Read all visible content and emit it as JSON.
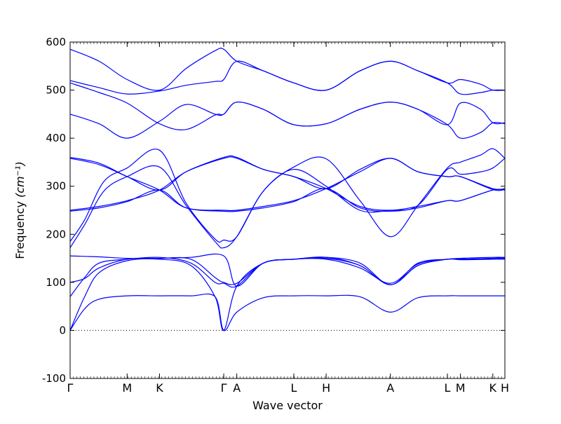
{
  "chart_data": {
    "type": "line",
    "title": "",
    "xlabel": "Wave vector",
    "ylabel": "Frequency",
    "ylabel_unit": "(cm⁻¹)",
    "ylim": [
      -100,
      600
    ],
    "yticks": [
      -100,
      0,
      100,
      200,
      300,
      400,
      500,
      600
    ],
    "grid": false,
    "legend": "none",
    "line_color": "#0000ff",
    "zero_line": {
      "y": 0,
      "style": "dotted",
      "color": "#000000"
    },
    "xlim": [
      0,
      9.0
    ],
    "xticks": [
      {
        "label": "Γ",
        "x": 0
      },
      {
        "label": "M",
        "x": 1.18
      },
      {
        "label": "K",
        "x": 1.85
      },
      {
        "label": "Γ",
        "x": 3.18
      },
      {
        "label": "A",
        "x": 3.45
      },
      {
        "label": "L",
        "x": 4.63
      },
      {
        "label": "H",
        "x": 5.3
      },
      {
        "label": "A",
        "x": 6.63
      },
      {
        "label": "L",
        "x": 7.81
      },
      {
        "label": "M",
        "x": 8.08
      },
      {
        "label": "K",
        "x": 8.75
      },
      {
        "label": "H",
        "x": 9.0
      }
    ],
    "series": [
      {
        "points": [
          [
            0,
            0
          ],
          [
            0.3,
            45
          ],
          [
            0.6,
            65
          ],
          [
            1.18,
            72
          ],
          [
            1.85,
            72
          ],
          [
            2.5,
            72
          ],
          [
            3.0,
            70
          ],
          [
            3.18,
            0
          ],
          [
            3.45,
            38
          ],
          [
            4.0,
            68
          ],
          [
            4.63,
            72
          ],
          [
            5.3,
            72
          ],
          [
            6.0,
            70
          ],
          [
            6.63,
            38
          ],
          [
            7.2,
            68
          ],
          [
            7.81,
            72
          ],
          [
            8.08,
            72
          ],
          [
            8.75,
            72
          ],
          [
            9.0,
            72
          ]
        ]
      },
      {
        "points": [
          [
            0,
            0
          ],
          [
            0.3,
            70
          ],
          [
            0.6,
            120
          ],
          [
            1.18,
            145
          ],
          [
            1.85,
            148
          ],
          [
            2.5,
            135
          ],
          [
            3.0,
            70
          ],
          [
            3.18,
            0
          ],
          [
            3.45,
            92
          ],
          [
            4.0,
            140
          ],
          [
            4.63,
            148
          ],
          [
            5.3,
            150
          ],
          [
            6.0,
            135
          ],
          [
            6.63,
            95
          ],
          [
            7.2,
            135
          ],
          [
            7.81,
            148
          ],
          [
            8.08,
            148
          ],
          [
            8.75,
            150
          ],
          [
            9.0,
            150
          ]
        ]
      },
      {
        "points": [
          [
            0,
            70
          ],
          [
            0.3,
            110
          ],
          [
            0.6,
            140
          ],
          [
            1.18,
            148
          ],
          [
            1.85,
            152
          ],
          [
            2.5,
            140
          ],
          [
            3.0,
            100
          ],
          [
            3.18,
            98
          ],
          [
            3.45,
            92
          ],
          [
            4.0,
            140
          ],
          [
            4.63,
            148
          ],
          [
            5.3,
            152
          ],
          [
            6.0,
            135
          ],
          [
            6.63,
            95
          ],
          [
            7.2,
            135
          ],
          [
            7.81,
            148
          ],
          [
            8.08,
            147
          ],
          [
            8.75,
            148
          ],
          [
            9.0,
            148
          ]
        ]
      },
      {
        "points": [
          [
            0,
            100
          ],
          [
            0.3,
            108
          ],
          [
            0.6,
            130
          ],
          [
            1.18,
            148
          ],
          [
            1.85,
            150
          ],
          [
            2.5,
            148
          ],
          [
            3.0,
            110
          ],
          [
            3.18,
            100
          ],
          [
            3.45,
            98
          ],
          [
            4.0,
            140
          ],
          [
            4.63,
            148
          ],
          [
            5.3,
            148
          ],
          [
            6.0,
            130
          ],
          [
            6.63,
            98
          ],
          [
            7.2,
            138
          ],
          [
            7.81,
            148
          ],
          [
            8.08,
            148
          ],
          [
            8.75,
            150
          ],
          [
            9.0,
            152
          ]
        ]
      },
      {
        "points": [
          [
            0,
            155
          ],
          [
            0.6,
            153
          ],
          [
            1.18,
            150
          ],
          [
            1.85,
            150
          ],
          [
            2.5,
            152
          ],
          [
            3.18,
            155
          ],
          [
            3.45,
            92
          ],
          [
            4.0,
            140
          ],
          [
            4.63,
            148
          ],
          [
            5.3,
            152
          ],
          [
            6.0,
            140
          ],
          [
            6.63,
            95
          ],
          [
            7.2,
            140
          ],
          [
            7.81,
            148
          ],
          [
            8.08,
            150
          ],
          [
            8.75,
            152
          ],
          [
            9.0,
            152
          ]
        ]
      },
      {
        "points": [
          [
            0,
            172
          ],
          [
            0.3,
            220
          ],
          [
            0.7,
            290
          ],
          [
            1.18,
            320
          ],
          [
            1.85,
            340
          ],
          [
            2.4,
            260
          ],
          [
            3.0,
            185
          ],
          [
            3.18,
            172
          ],
          [
            3.45,
            195
          ],
          [
            4.0,
            290
          ],
          [
            4.63,
            340
          ],
          [
            5.3,
            357
          ],
          [
            6.0,
            270
          ],
          [
            6.63,
            195
          ],
          [
            7.2,
            260
          ],
          [
            7.81,
            338
          ],
          [
            8.08,
            350
          ],
          [
            8.5,
            365
          ],
          [
            8.75,
            378
          ],
          [
            9.0,
            358
          ]
        ]
      },
      {
        "points": [
          [
            0,
            185
          ],
          [
            0.3,
            230
          ],
          [
            0.7,
            310
          ],
          [
            1.18,
            338
          ],
          [
            1.85,
            375
          ],
          [
            2.4,
            265
          ],
          [
            3.0,
            190
          ],
          [
            3.18,
            188
          ],
          [
            3.45,
            195
          ],
          [
            4.0,
            290
          ],
          [
            4.63,
            335
          ],
          [
            5.3,
            300
          ],
          [
            6.0,
            250
          ],
          [
            6.63,
            250
          ],
          [
            7.2,
            260
          ],
          [
            7.81,
            335
          ],
          [
            8.08,
            325
          ],
          [
            8.5,
            330
          ],
          [
            8.75,
            338
          ],
          [
            9.0,
            358
          ]
        ]
      },
      {
        "points": [
          [
            0,
            248
          ],
          [
            0.6,
            255
          ],
          [
            1.18,
            268
          ],
          [
            1.85,
            292
          ],
          [
            2.4,
            255
          ],
          [
            3.18,
            248
          ],
          [
            3.45,
            248
          ],
          [
            4.0,
            255
          ],
          [
            4.63,
            268
          ],
          [
            5.3,
            295
          ],
          [
            6.0,
            255
          ],
          [
            6.63,
            248
          ],
          [
            7.2,
            255
          ],
          [
            7.81,
            270
          ],
          [
            8.08,
            270
          ],
          [
            8.75,
            292
          ],
          [
            9.0,
            292
          ]
        ]
      },
      {
        "points": [
          [
            0,
            250
          ],
          [
            0.6,
            258
          ],
          [
            1.18,
            270
          ],
          [
            1.85,
            292
          ],
          [
            2.4,
            330
          ],
          [
            3.18,
            358
          ],
          [
            3.45,
            358
          ],
          [
            4.0,
            335
          ],
          [
            4.63,
            320
          ],
          [
            5.3,
            295
          ],
          [
            6.0,
            335
          ],
          [
            6.63,
            358
          ],
          [
            7.2,
            330
          ],
          [
            7.81,
            320
          ],
          [
            8.08,
            320
          ],
          [
            8.75,
            295
          ],
          [
            9.0,
            295
          ]
        ]
      },
      {
        "points": [
          [
            0,
            358
          ],
          [
            0.6,
            345
          ],
          [
            1.18,
            320
          ],
          [
            1.85,
            292
          ],
          [
            2.4,
            255
          ],
          [
            3.18,
            250
          ],
          [
            3.45,
            250
          ],
          [
            4.0,
            258
          ],
          [
            4.63,
            270
          ],
          [
            5.3,
            295
          ],
          [
            6.0,
            330
          ],
          [
            6.63,
            358
          ],
          [
            7.2,
            330
          ],
          [
            7.81,
            320
          ],
          [
            8.08,
            320
          ],
          [
            8.75,
            293
          ],
          [
            9.0,
            293
          ]
        ]
      },
      {
        "points": [
          [
            0,
            360
          ],
          [
            0.6,
            348
          ],
          [
            1.18,
            320
          ],
          [
            1.85,
            292
          ],
          [
            2.4,
            330
          ],
          [
            3.18,
            360
          ],
          [
            3.45,
            360
          ],
          [
            4.0,
            335
          ],
          [
            4.63,
            320
          ],
          [
            5.3,
            295
          ],
          [
            6.0,
            258
          ],
          [
            6.63,
            250
          ],
          [
            7.2,
            258
          ],
          [
            7.81,
            270
          ],
          [
            8.08,
            270
          ],
          [
            8.75,
            292
          ],
          [
            9.0,
            292
          ]
        ]
      },
      {
        "points": [
          [
            0,
            450
          ],
          [
            0.6,
            430
          ],
          [
            1.18,
            400
          ],
          [
            1.85,
            435
          ],
          [
            2.4,
            470
          ],
          [
            3.0,
            450
          ],
          [
            3.18,
            450
          ],
          [
            3.45,
            475
          ],
          [
            4.0,
            460
          ],
          [
            4.63,
            428
          ],
          [
            5.3,
            430
          ],
          [
            6.0,
            460
          ],
          [
            6.63,
            475
          ],
          [
            7.2,
            460
          ],
          [
            7.81,
            428
          ],
          [
            8.08,
            400
          ],
          [
            8.5,
            412
          ],
          [
            8.75,
            432
          ],
          [
            9.0,
            430
          ]
        ]
      },
      {
        "points": [
          [
            0,
            515
          ],
          [
            0.6,
            495
          ],
          [
            1.18,
            473
          ],
          [
            1.85,
            430
          ],
          [
            2.4,
            418
          ],
          [
            3.0,
            448
          ],
          [
            3.18,
            450
          ],
          [
            3.45,
            475
          ],
          [
            4.0,
            460
          ],
          [
            4.63,
            428
          ],
          [
            5.3,
            430
          ],
          [
            6.0,
            460
          ],
          [
            6.63,
            475
          ],
          [
            7.2,
            460
          ],
          [
            7.81,
            428
          ],
          [
            8.08,
            473
          ],
          [
            8.5,
            460
          ],
          [
            8.75,
            432
          ],
          [
            9.0,
            432
          ]
        ]
      },
      {
        "points": [
          [
            0,
            520
          ],
          [
            0.6,
            505
          ],
          [
            1.18,
            492
          ],
          [
            1.85,
            498
          ],
          [
            2.4,
            510
          ],
          [
            3.0,
            518
          ],
          [
            3.18,
            522
          ],
          [
            3.45,
            560
          ],
          [
            4.0,
            540
          ],
          [
            4.63,
            515
          ],
          [
            5.3,
            500
          ],
          [
            6.0,
            540
          ],
          [
            6.63,
            560
          ],
          [
            7.2,
            540
          ],
          [
            7.81,
            515
          ],
          [
            8.08,
            492
          ],
          [
            8.5,
            495
          ],
          [
            8.75,
            500
          ],
          [
            9.0,
            500
          ]
        ]
      },
      {
        "points": [
          [
            0,
            585
          ],
          [
            0.6,
            560
          ],
          [
            1.18,
            522
          ],
          [
            1.85,
            500
          ],
          [
            2.4,
            545
          ],
          [
            3.0,
            582
          ],
          [
            3.18,
            585
          ],
          [
            3.45,
            560
          ],
          [
            4.0,
            540
          ],
          [
            4.63,
            515
          ],
          [
            5.3,
            500
          ],
          [
            6.0,
            540
          ],
          [
            6.63,
            560
          ],
          [
            7.2,
            540
          ],
          [
            7.81,
            515
          ],
          [
            8.08,
            522
          ],
          [
            8.5,
            512
          ],
          [
            8.75,
            500
          ],
          [
            9.0,
            500
          ]
        ]
      }
    ]
  }
}
